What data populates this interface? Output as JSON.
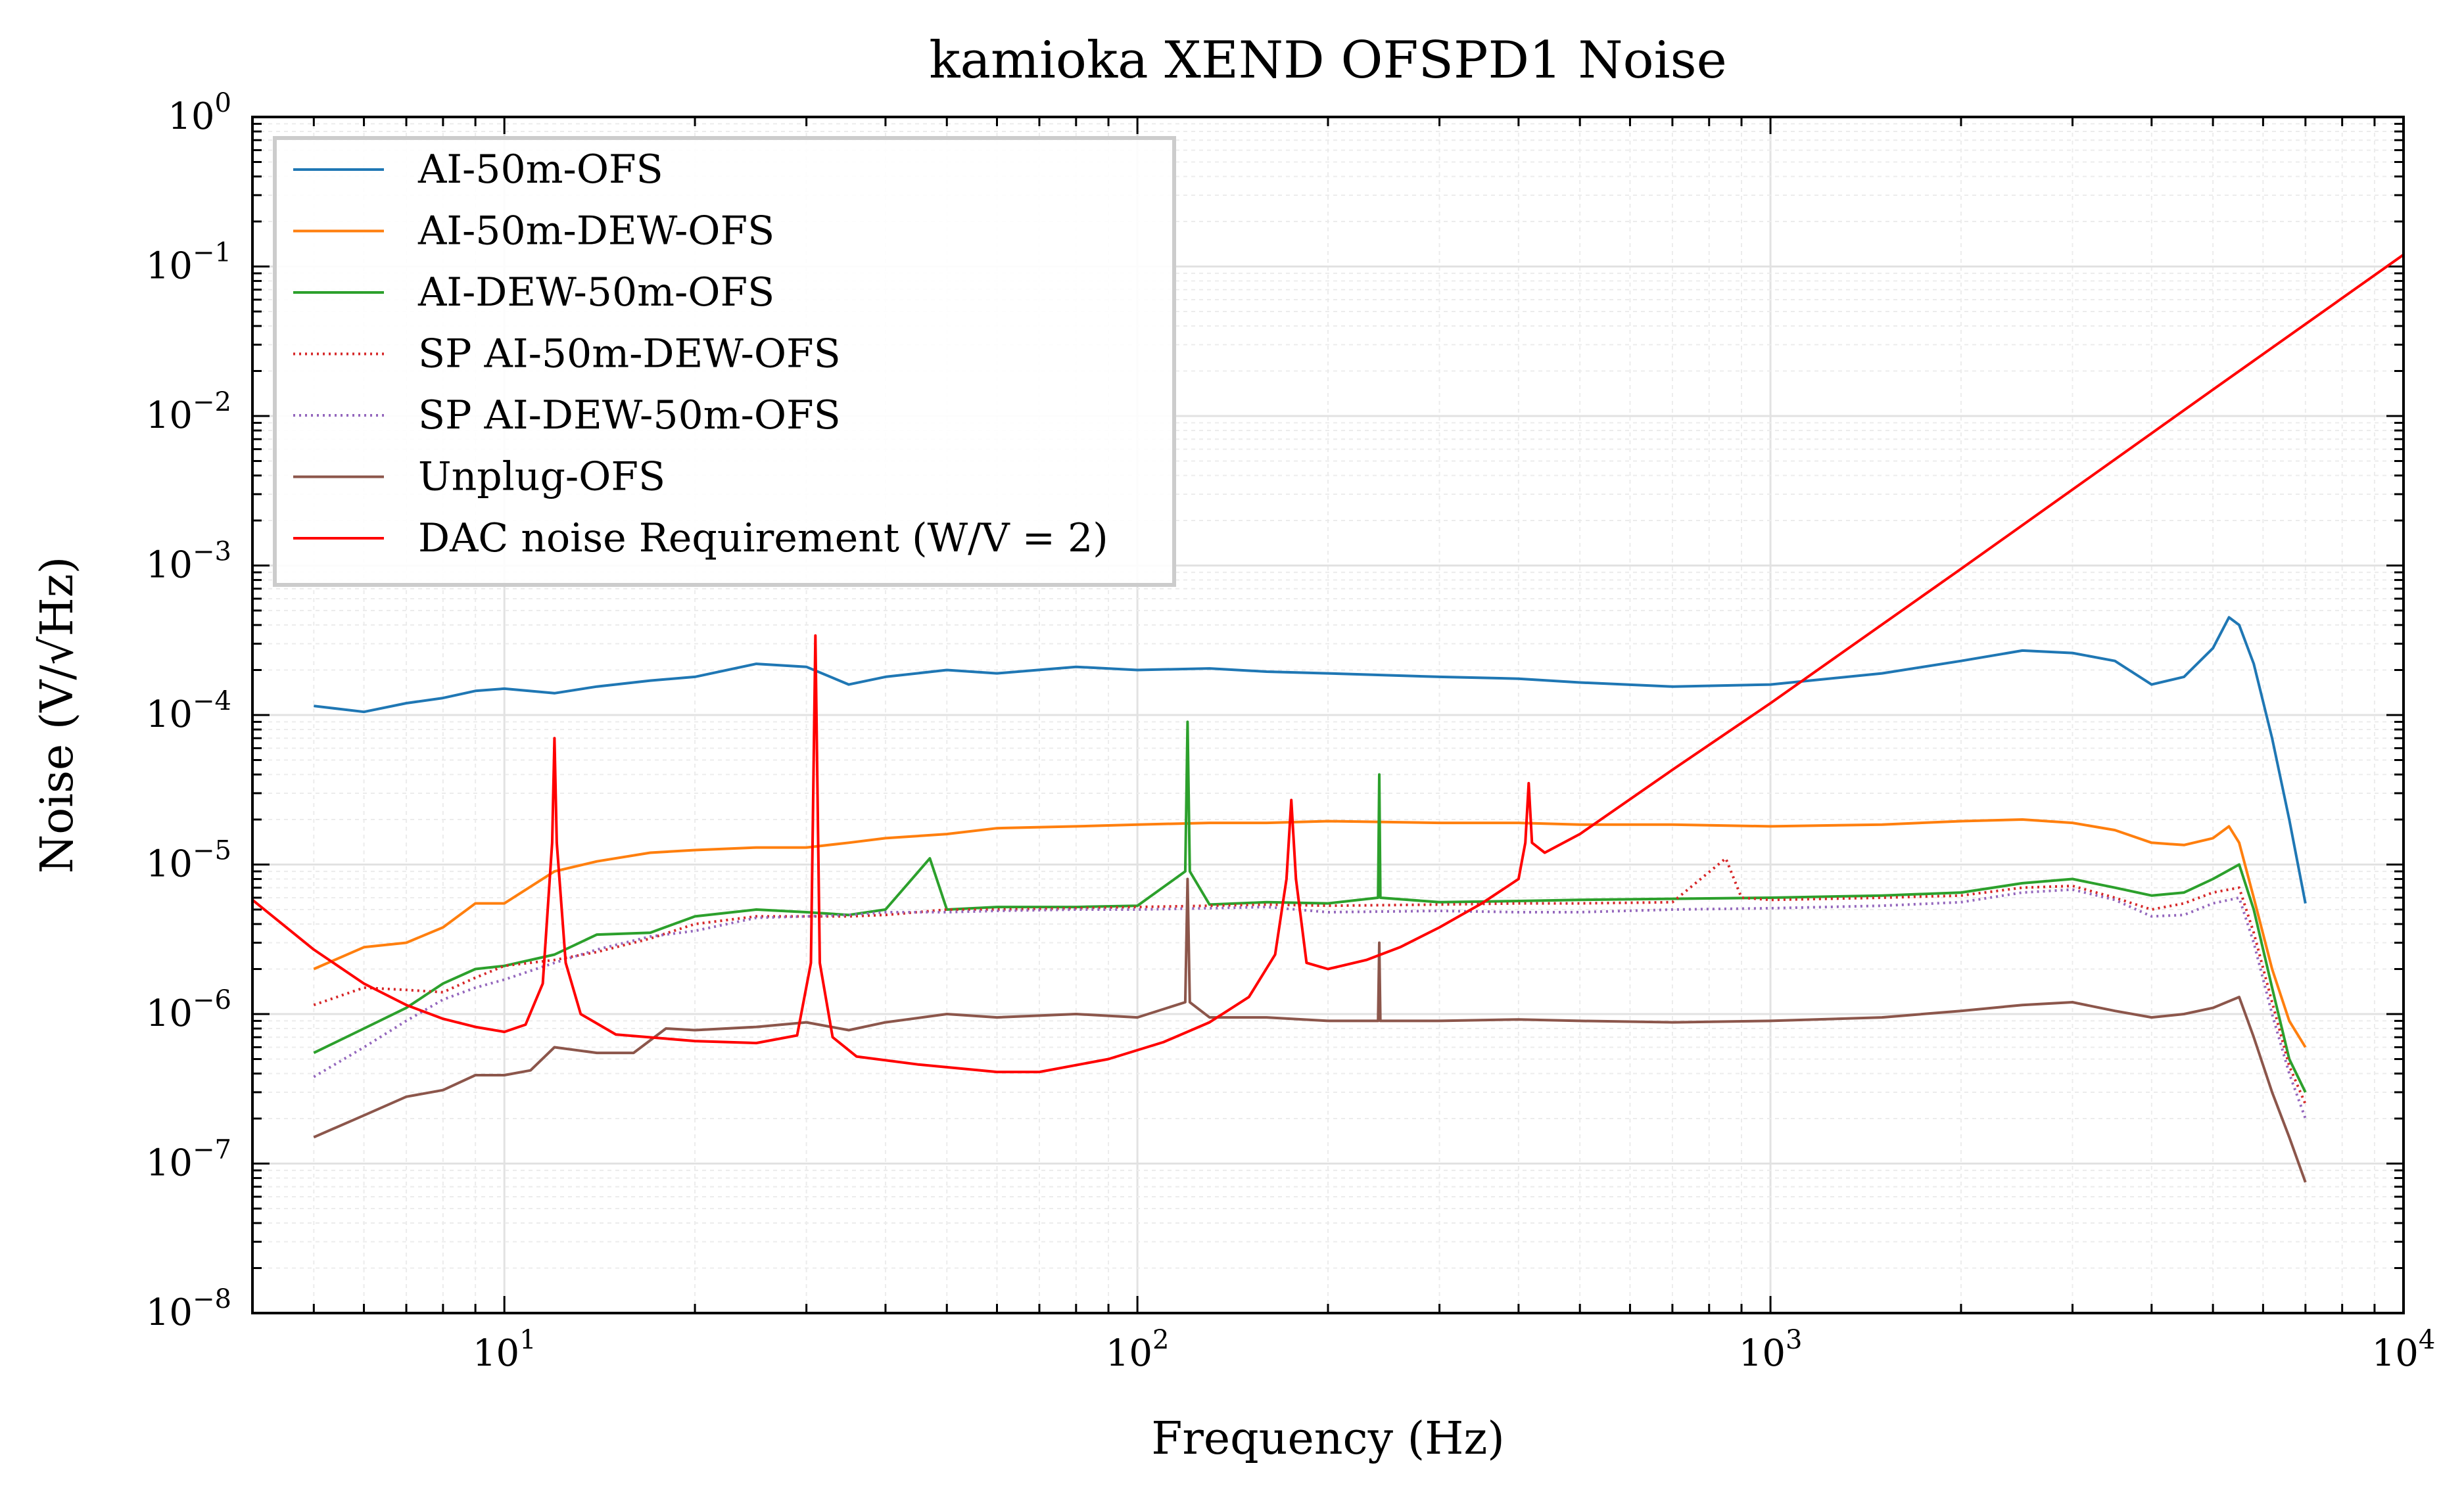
{
  "chart_data": {
    "type": "line",
    "title": "kamioka XEND OFSPD1 Noise",
    "xlabel": "Frequency (Hz)",
    "ylabel": "Noise (V/√Hz)",
    "xscale": "log",
    "yscale": "log",
    "xlim": [
      4,
      10000
    ],
    "ylim": [
      1e-08,
      1
    ],
    "grid": true,
    "legend_position": "top-left",
    "x_ticks": [
      {
        "value": 10,
        "base": "10",
        "exp": "1"
      },
      {
        "value": 100,
        "base": "10",
        "exp": "2"
      },
      {
        "value": 1000,
        "base": "10",
        "exp": "3"
      },
      {
        "value": 10000,
        "base": "10",
        "exp": "4"
      }
    ],
    "y_ticks": [
      {
        "value": 1e-08,
        "base": "10",
        "exp": "−8"
      },
      {
        "value": 1e-07,
        "base": "10",
        "exp": "−7"
      },
      {
        "value": 1e-06,
        "base": "10",
        "exp": "−6"
      },
      {
        "value": 1e-05,
        "base": "10",
        "exp": "−5"
      },
      {
        "value": 0.0001,
        "base": "10",
        "exp": "−4"
      },
      {
        "value": 0.001,
        "base": "10",
        "exp": "−3"
      },
      {
        "value": 0.01,
        "base": "10",
        "exp": "−2"
      },
      {
        "value": 0.1,
        "base": "10",
        "exp": "−1"
      },
      {
        "value": 1,
        "base": "10",
        "exp": "0"
      }
    ],
    "series": [
      {
        "name": "AI-50m-OFS",
        "color": "#1f77b4",
        "style": "solid",
        "x": [
          5,
          6,
          7,
          8,
          9,
          10,
          12,
          14,
          17,
          20,
          25,
          30,
          35,
          40,
          50,
          60,
          80,
          100,
          130,
          160,
          200,
          300,
          400,
          500,
          700,
          1000,
          1500,
          2000,
          2500,
          3000,
          3500,
          4000,
          4500,
          5000,
          5300,
          5500,
          5800,
          6200,
          6600,
          7000
        ],
        "y": [
          0.000115,
          0.000105,
          0.00012,
          0.00013,
          0.000145,
          0.00015,
          0.00014,
          0.000155,
          0.00017,
          0.00018,
          0.00022,
          0.00021,
          0.00016,
          0.00018,
          0.0002,
          0.00019,
          0.00021,
          0.0002,
          0.000205,
          0.000195,
          0.00019,
          0.00018,
          0.000175,
          0.000165,
          0.000155,
          0.00016,
          0.00019,
          0.00023,
          0.00027,
          0.00026,
          0.00023,
          0.00016,
          0.00018,
          0.00028,
          0.00045,
          0.0004,
          0.00022,
          7e-05,
          2e-05,
          5.5e-06
        ]
      },
      {
        "name": "AI-50m-DEW-OFS",
        "color": "#ff7f0e",
        "style": "solid",
        "x": [
          5,
          6,
          7,
          8,
          9,
          10,
          12,
          14,
          17,
          20,
          25,
          30,
          35,
          40,
          50,
          60,
          80,
          100,
          130,
          160,
          200,
          300,
          400,
          500,
          700,
          1000,
          1500,
          2000,
          2500,
          3000,
          3500,
          4000,
          4500,
          5000,
          5300,
          5500,
          5800,
          6200,
          6600,
          7000
        ],
        "y": [
          2e-06,
          2.8e-06,
          3e-06,
          3.8e-06,
          5.5e-06,
          5.5e-06,
          9e-06,
          1.05e-05,
          1.2e-05,
          1.25e-05,
          1.3e-05,
          1.3e-05,
          1.4e-05,
          1.5e-05,
          1.6e-05,
          1.75e-05,
          1.8e-05,
          1.85e-05,
          1.9e-05,
          1.9e-05,
          1.95e-05,
          1.9e-05,
          1.9e-05,
          1.85e-05,
          1.85e-05,
          1.8e-05,
          1.85e-05,
          1.95e-05,
          2e-05,
          1.9e-05,
          1.7e-05,
          1.4e-05,
          1.35e-05,
          1.5e-05,
          1.8e-05,
          1.4e-05,
          6e-06,
          2e-06,
          9e-07,
          6e-07
        ]
      },
      {
        "name": "AI-DEW-50m-OFS",
        "color": "#2ca02c",
        "style": "solid",
        "x": [
          5,
          6,
          7,
          8,
          9,
          10,
          12,
          14,
          17,
          20,
          25,
          30,
          35,
          40,
          47,
          50,
          60,
          80,
          100,
          119,
          120,
          121,
          130,
          160,
          200,
          240,
          241,
          242,
          300,
          400,
          500,
          700,
          1000,
          1500,
          2000,
          2500,
          3000,
          3500,
          4000,
          4500,
          5000,
          5500,
          5800,
          6200,
          6600,
          7000
        ],
        "y": [
          5.5e-07,
          8e-07,
          1.1e-06,
          1.6e-06,
          2e-06,
          2.1e-06,
          2.5e-06,
          3.4e-06,
          3.5e-06,
          4.5e-06,
          5e-06,
          4.8e-06,
          4.6e-06,
          5e-06,
          1.1e-05,
          5e-06,
          5.2e-06,
          5.2e-06,
          5.3e-06,
          9e-06,
          9e-05,
          9e-06,
          5.4e-06,
          5.6e-06,
          5.5e-06,
          6e-06,
          4e-05,
          6e-06,
          5.6e-06,
          5.7e-06,
          5.8e-06,
          5.9e-06,
          6e-06,
          6.2e-06,
          6.5e-06,
          7.5e-06,
          8e-06,
          7e-06,
          6.2e-06,
          6.5e-06,
          8e-06,
          1e-05,
          5e-06,
          1.5e-06,
          5e-07,
          3e-07
        ]
      },
      {
        "name": "SP AI-50m-DEW-OFS",
        "color": "#d62728",
        "style": "dotted",
        "x": [
          5,
          6,
          7,
          8,
          9,
          10,
          12,
          14,
          17,
          20,
          25,
          30,
          35,
          40,
          50,
          60,
          80,
          100,
          130,
          160,
          200,
          300,
          400,
          500,
          700,
          850,
          900,
          1000,
          1500,
          2000,
          2500,
          3000,
          3500,
          4000,
          4500,
          5000,
          5500,
          5800,
          6200,
          6600,
          7000
        ],
        "y": [
          1.15e-06,
          1.5e-06,
          1.45e-06,
          1.4e-06,
          1.75e-06,
          2.1e-06,
          2.3e-06,
          2.6e-06,
          3.2e-06,
          4e-06,
          4.5e-06,
          4.5e-06,
          4.5e-06,
          4.6e-06,
          5e-06,
          5e-06,
          5.1e-06,
          5.2e-06,
          5.3e-06,
          5.4e-06,
          5.3e-06,
          5.4e-06,
          5.5e-06,
          5.5e-06,
          5.6e-06,
          1.1e-05,
          6e-06,
          5.8e-06,
          6e-06,
          6.2e-06,
          7e-06,
          7.2e-06,
          6e-06,
          5e-06,
          5.5e-06,
          6.5e-06,
          7e-06,
          3.5e-06,
          1.2e-06,
          4.5e-07,
          2.5e-07
        ]
      },
      {
        "name": "SP AI-DEW-50m-OFS",
        "color": "#9467bd",
        "style": "dotted",
        "x": [
          5,
          6,
          7,
          8,
          9,
          10,
          12,
          14,
          17,
          20,
          25,
          30,
          35,
          40,
          50,
          60,
          80,
          100,
          130,
          160,
          200,
          300,
          400,
          500,
          700,
          1000,
          1500,
          2000,
          2500,
          3000,
          3500,
          4000,
          4500,
          5000,
          5500,
          5800,
          6200,
          6600,
          7000
        ],
        "y": [
          3.8e-07,
          6e-07,
          9e-07,
          1.25e-06,
          1.5e-06,
          1.7e-06,
          2.2e-06,
          2.7e-06,
          3.3e-06,
          3.6e-06,
          4.4e-06,
          4.5e-06,
          4.6e-06,
          4.8e-06,
          4.8e-06,
          4.9e-06,
          5e-06,
          5e-06,
          5.1e-06,
          5.2e-06,
          4.8e-06,
          4.9e-06,
          4.8e-06,
          4.8e-06,
          5e-06,
          5.1e-06,
          5.3e-06,
          5.6e-06,
          6.5e-06,
          6.8e-06,
          5.8e-06,
          4.5e-06,
          4.6e-06,
          5.5e-06,
          6e-06,
          3e-06,
          1e-06,
          4e-07,
          2e-07
        ]
      },
      {
        "name": "Unplug-OFS",
        "color": "#8c564b",
        "style": "solid",
        "x": [
          5,
          6,
          7,
          8,
          9,
          10,
          11,
          12,
          14,
          16,
          18,
          20,
          25,
          30,
          35,
          40,
          50,
          60,
          80,
          100,
          119,
          120,
          121,
          130,
          160,
          200,
          240,
          241,
          242,
          300,
          400,
          500,
          700,
          1000,
          1500,
          2000,
          2500,
          3000,
          3500,
          4000,
          4500,
          5000,
          5500,
          5800,
          6200,
          6600,
          7000
        ],
        "y": [
          1.5e-07,
          2.1e-07,
          2.8e-07,
          3.1e-07,
          3.9e-07,
          3.9e-07,
          4.2e-07,
          6e-07,
          5.5e-07,
          5.5e-07,
          8e-07,
          7.8e-07,
          8.2e-07,
          8.8e-07,
          7.8e-07,
          8.8e-07,
          1e-06,
          9.5e-07,
          1e-06,
          9.5e-07,
          1.2e-06,
          8e-06,
          1.2e-06,
          9.5e-07,
          9.5e-07,
          9e-07,
          9e-07,
          3e-06,
          9e-07,
          9e-07,
          9.2e-07,
          9e-07,
          8.8e-07,
          9e-07,
          9.5e-07,
          1.05e-06,
          1.15e-06,
          1.2e-06,
          1.05e-06,
          9.5e-07,
          1e-06,
          1.1e-06,
          1.3e-06,
          7e-07,
          3e-07,
          1.5e-07,
          7.5e-08
        ]
      },
      {
        "name": "DAC noise Requirement (W/V = 2)",
        "color": "#ff0000",
        "style": "solid",
        "x": [
          4,
          5,
          6,
          7,
          8,
          9,
          10,
          10.8,
          11.5,
          11.9,
          12,
          12.1,
          12.5,
          13.2,
          15,
          20,
          25,
          29,
          30.5,
          31,
          31.5,
          33,
          36,
          45,
          60,
          70,
          90,
          110,
          130,
          150,
          165,
          172,
          175,
          178,
          185,
          200,
          230,
          260,
          300,
          350,
          400,
          410,
          415,
          420,
          440,
          500,
          700,
          1000,
          2000,
          5000,
          10000
        ],
        "y": [
          5.8e-06,
          2.7e-06,
          1.6e-06,
          1.15e-06,
          9.3e-07,
          8.2e-07,
          7.6e-07,
          8.5e-07,
          1.6e-06,
          1.4e-05,
          7e-05,
          1.4e-05,
          2.2e-06,
          1e-06,
          7.3e-07,
          6.6e-07,
          6.4e-07,
          7.2e-07,
          2.2e-06,
          0.00034,
          2.2e-06,
          7e-07,
          5.2e-07,
          4.6e-07,
          4.1e-07,
          4.1e-07,
          5e-07,
          6.5e-07,
          8.8e-07,
          1.3e-06,
          2.5e-06,
          8e-06,
          2.7e-05,
          8e-06,
          2.2e-06,
          2e-06,
          2.3e-06,
          2.8e-06,
          3.8e-06,
          5.5e-06,
          8e-06,
          1.4e-05,
          3.5e-05,
          1.4e-05,
          1.2e-05,
          1.6e-05,
          4.3e-05,
          0.00012,
          0.00095,
          0.015,
          0.12
        ]
      }
    ]
  }
}
